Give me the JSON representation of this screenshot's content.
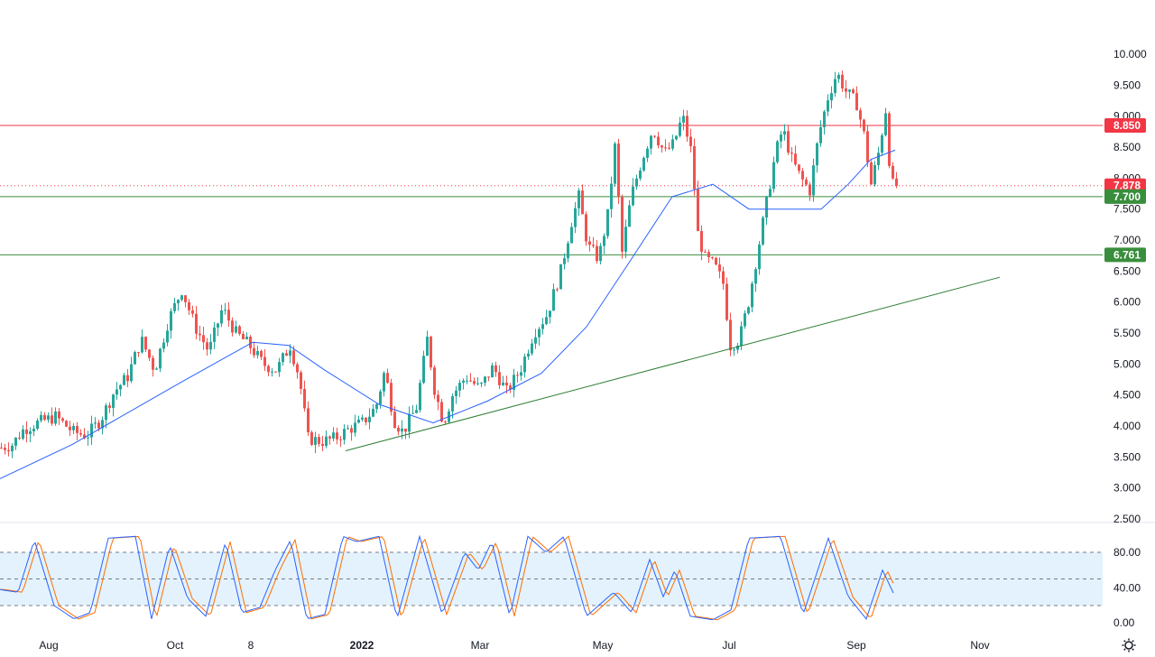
{
  "colors": {
    "up": "#26a69a",
    "down": "#ef5350",
    "ma": "#2962ff",
    "resistance": "#f23645",
    "support": "#388e3c",
    "trendline": "#2e7d32",
    "stoch_k": "#2962ff",
    "stoch_d": "#ff6d00",
    "stoch_band": "#e3f2fd"
  },
  "settings_icon": "gear-icon",
  "chart_data": {
    "type": "candlestick",
    "price_axis": {
      "range": [
        2.5,
        10.0
      ],
      "ticks": [
        "10.000",
        "9.500",
        "9.000",
        "8.500",
        "8.000",
        "7.500",
        "7.000",
        "6.500",
        "6.000",
        "5.500",
        "5.000",
        "4.500",
        "4.000",
        "3.500",
        "3.000",
        "2.500"
      ]
    },
    "time_axis": {
      "ticks": [
        "Aug",
        "Oct",
        "8",
        "2022",
        "Mar",
        "May",
        "Jul",
        "Sep",
        "Nov"
      ]
    },
    "price_path": [
      [
        0,
        3.65
      ],
      [
        12,
        3.7
      ],
      [
        25,
        3.95
      ],
      [
        40,
        4.05
      ],
      [
        60,
        4.15
      ],
      [
        80,
        3.9
      ],
      [
        95,
        3.85
      ],
      [
        110,
        4.1
      ],
      [
        125,
        4.55
      ],
      [
        140,
        4.8
      ],
      [
        155,
        5.4
      ],
      [
        170,
        4.9
      ],
      [
        185,
        5.7
      ],
      [
        200,
        6.2
      ],
      [
        215,
        5.6
      ],
      [
        230,
        5.2
      ],
      [
        245,
        5.9
      ],
      [
        260,
        5.5
      ],
      [
        275,
        5.3
      ],
      [
        290,
        5.0
      ],
      [
        305,
        4.9
      ],
      [
        320,
        5.3
      ],
      [
        330,
        4.8
      ],
      [
        340,
        3.8
      ],
      [
        355,
        3.75
      ],
      [
        370,
        3.8
      ],
      [
        385,
        3.95
      ],
      [
        400,
        4.05
      ],
      [
        415,
        4.3
      ],
      [
        425,
        4.9
      ],
      [
        435,
        4.1
      ],
      [
        445,
        3.9
      ],
      [
        460,
        4.3
      ],
      [
        472,
        5.4
      ],
      [
        480,
        4.6
      ],
      [
        490,
        4.05
      ],
      [
        500,
        4.5
      ],
      [
        515,
        4.8
      ],
      [
        530,
        4.6
      ],
      [
        545,
        4.95
      ],
      [
        560,
        4.55
      ],
      [
        575,
        4.9
      ],
      [
        590,
        5.5
      ],
      [
        605,
        5.8
      ],
      [
        620,
        6.5
      ],
      [
        632,
        7.3
      ],
      [
        640,
        7.7
      ],
      [
        650,
        6.9
      ],
      [
        662,
        6.7
      ],
      [
        672,
        7.4
      ],
      [
        680,
        8.5
      ],
      [
        688,
        6.8
      ],
      [
        698,
        7.7
      ],
      [
        710,
        8.3
      ],
      [
        722,
        8.8
      ],
      [
        735,
        8.4
      ],
      [
        745,
        8.55
      ],
      [
        755,
        9.0
      ],
      [
        765,
        8.4
      ],
      [
        772,
        7.1
      ],
      [
        780,
        6.7
      ],
      [
        790,
        6.6
      ],
      [
        800,
        6.3
      ],
      [
        808,
        5.3
      ],
      [
        818,
        5.4
      ],
      [
        828,
        6.0
      ],
      [
        838,
        6.8
      ],
      [
        848,
        7.6
      ],
      [
        858,
        8.4
      ],
      [
        866,
        8.8
      ],
      [
        876,
        8.3
      ],
      [
        886,
        8.0
      ],
      [
        896,
        7.8
      ],
      [
        906,
        8.7
      ],
      [
        916,
        9.3
      ],
      [
        926,
        9.7
      ],
      [
        936,
        9.4
      ],
      [
        948,
        9.2
      ],
      [
        956,
        8.7
      ],
      [
        964,
        7.9
      ],
      [
        972,
        8.4
      ],
      [
        980,
        9.1
      ],
      [
        986,
        7.9
      ],
      [
        992,
        7.88
      ]
    ],
    "moving_average": [
      [
        0,
        3.15
      ],
      [
        80,
        3.7
      ],
      [
        200,
        4.7
      ],
      [
        280,
        5.35
      ],
      [
        320,
        5.3
      ],
      [
        360,
        4.9
      ],
      [
        420,
        4.35
      ],
      [
        480,
        4.05
      ],
      [
        540,
        4.4
      ],
      [
        600,
        4.85
      ],
      [
        650,
        5.6
      ],
      [
        700,
        6.7
      ],
      [
        745,
        7.7
      ],
      [
        790,
        7.9
      ],
      [
        830,
        7.5
      ],
      [
        870,
        7.5
      ],
      [
        910,
        7.5
      ],
      [
        940,
        7.9
      ],
      [
        965,
        8.3
      ],
      [
        992,
        8.45
      ]
    ],
    "horizontal_levels": [
      {
        "label": "8.850",
        "value": 8.85,
        "kind": "resistance"
      },
      {
        "label": "7.878",
        "value": 7.878,
        "kind": "last-price"
      },
      {
        "label": "7.700",
        "value": 7.7,
        "kind": "support"
      },
      {
        "label": "6.761",
        "value": 6.761,
        "kind": "support"
      }
    ],
    "trendline": {
      "from": [
        383,
        3.6
      ],
      "to": [
        1108,
        6.4
      ]
    },
    "stochastic": {
      "axis_ticks": [
        "80.00",
        "40.00",
        "0.00"
      ],
      "levels": [
        80,
        50,
        20
      ],
      "k_path": [
        [
          0,
          38
        ],
        [
          20,
          35
        ],
        [
          38,
          94
        ],
        [
          60,
          20
        ],
        [
          82,
          5
        ],
        [
          100,
          12
        ],
        [
          120,
          96
        ],
        [
          150,
          98
        ],
        [
          168,
          5
        ],
        [
          188,
          88
        ],
        [
          208,
          28
        ],
        [
          228,
          8
        ],
        [
          250,
          92
        ],
        [
          268,
          12
        ],
        [
          288,
          18
        ],
        [
          305,
          60
        ],
        [
          322,
          94
        ],
        [
          340,
          5
        ],
        [
          360,
          10
        ],
        [
          380,
          98
        ],
        [
          395,
          92
        ],
        [
          420,
          98
        ],
        [
          440,
          5
        ],
        [
          465,
          98
        ],
        [
          490,
          10
        ],
        [
          515,
          80
        ],
        [
          530,
          60
        ],
        [
          545,
          92
        ],
        [
          565,
          8
        ],
        [
          585,
          98
        ],
        [
          605,
          80
        ],
        [
          625,
          98
        ],
        [
          650,
          8
        ],
        [
          680,
          35
        ],
        [
          700,
          12
        ],
        [
          720,
          72
        ],
        [
          735,
          30
        ],
        [
          748,
          60
        ],
        [
          765,
          8
        ],
        [
          790,
          4
        ],
        [
          810,
          15
        ],
        [
          830,
          96
        ],
        [
          865,
          98
        ],
        [
          890,
          10
        ],
        [
          918,
          96
        ],
        [
          940,
          30
        ],
        [
          960,
          5
        ],
        [
          978,
          60
        ],
        [
          992,
          30
        ]
      ]
    }
  }
}
